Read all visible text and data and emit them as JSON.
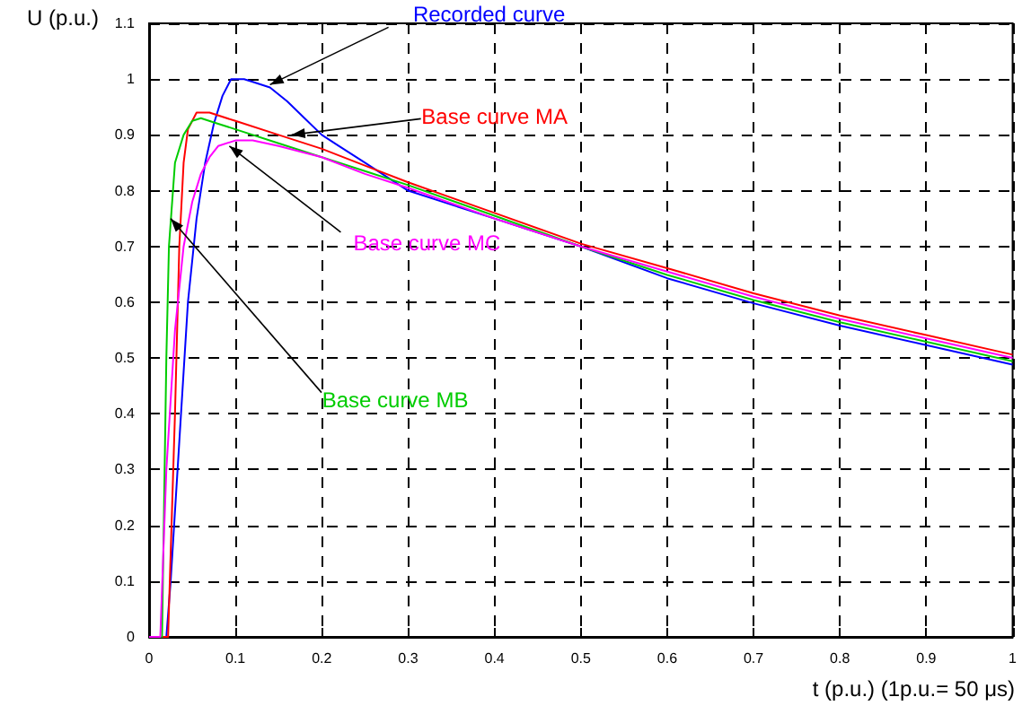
{
  "chart_data": {
    "type": "line",
    "xlabel": "t (p.u.) (1p.u.= 50 μs)",
    "ylabel": "U (p.u.)",
    "xlim": [
      0,
      1
    ],
    "xticks": [
      0,
      0.1,
      0.2,
      0.3,
      0.4,
      0.5,
      0.6,
      0.7,
      0.8,
      0.9,
      1
    ],
    "ylim": [
      0,
      1.1
    ],
    "yticks": [
      0,
      0.1,
      0.2,
      0.3,
      0.4,
      0.5,
      0.6,
      0.7,
      0.8,
      0.9,
      1,
      1.1
    ],
    "grid": true,
    "marker": "none",
    "line_style": "solid",
    "series": [
      {
        "color": "#0000ff",
        "x": [
          0,
          0.02,
          0.025,
          0.035,
          0.045,
          0.055,
          0.065,
          0.075,
          0.085,
          0.095,
          0.11,
          0.12,
          0.14,
          0.16,
          0.18,
          0.2,
          0.22,
          0.25,
          0.28,
          0.3,
          0.4,
          0.5,
          0.6,
          0.7,
          0.8,
          0.9,
          1.0
        ],
        "values": [
          0,
          0,
          0.1,
          0.35,
          0.6,
          0.75,
          0.85,
          0.92,
          0.97,
          1.0,
          1.0,
          0.995,
          0.985,
          0.96,
          0.93,
          0.9,
          0.88,
          0.85,
          0.82,
          0.8,
          0.75,
          0.7,
          0.643,
          0.598,
          0.558,
          0.523,
          0.488
        ]
      },
      {
        "color": "#ff0000",
        "x": [
          0,
          0.022,
          0.03,
          0.035,
          0.04,
          0.045,
          0.055,
          0.07,
          0.1,
          0.15,
          0.2,
          0.25,
          0.3,
          0.4,
          0.5,
          0.6,
          0.7,
          0.8,
          0.9,
          1.0
        ],
        "values": [
          0,
          0,
          0.4,
          0.7,
          0.85,
          0.91,
          0.94,
          0.94,
          0.925,
          0.9,
          0.875,
          0.845,
          0.815,
          0.76,
          0.705,
          0.661,
          0.616,
          0.576,
          0.541,
          0.506
        ]
      },
      {
        "color": "#00cc00",
        "x": [
          0,
          0.015,
          0.02,
          0.023,
          0.03,
          0.04,
          0.05,
          0.06,
          0.08,
          0.1,
          0.15,
          0.2,
          0.25,
          0.3,
          0.4,
          0.5,
          0.6,
          0.7,
          0.8,
          0.9,
          1.0
        ],
        "values": [
          0,
          0,
          0.5,
          0.7,
          0.85,
          0.9,
          0.925,
          0.93,
          0.92,
          0.91,
          0.885,
          0.86,
          0.835,
          0.81,
          0.755,
          0.7,
          0.649,
          0.604,
          0.564,
          0.529,
          0.494
        ]
      },
      {
        "color": "#ff00ff",
        "x": [
          0,
          0.013,
          0.02,
          0.03,
          0.04,
          0.05,
          0.06,
          0.07,
          0.08,
          0.1,
          0.12,
          0.15,
          0.2,
          0.25,
          0.3,
          0.4,
          0.5,
          0.6,
          0.7,
          0.8,
          0.9,
          1.0
        ],
        "values": [
          0,
          0,
          0.3,
          0.55,
          0.7,
          0.78,
          0.83,
          0.86,
          0.88,
          0.89,
          0.89,
          0.88,
          0.86,
          0.83,
          0.805,
          0.75,
          0.7,
          0.655,
          0.61,
          0.57,
          0.535,
          0.5
        ]
      }
    ],
    "annotations": [
      {
        "text": "Recorded curve",
        "x": 0.14,
        "y": 0.99
      },
      {
        "text": "Base curve MA",
        "x": 0.165,
        "y": 0.9
      },
      {
        "text": "Base curve MB",
        "x": 0.025,
        "y": 0.75
      },
      {
        "text": "Base curve MC",
        "x": 0.093,
        "y": 0.88
      }
    ]
  }
}
